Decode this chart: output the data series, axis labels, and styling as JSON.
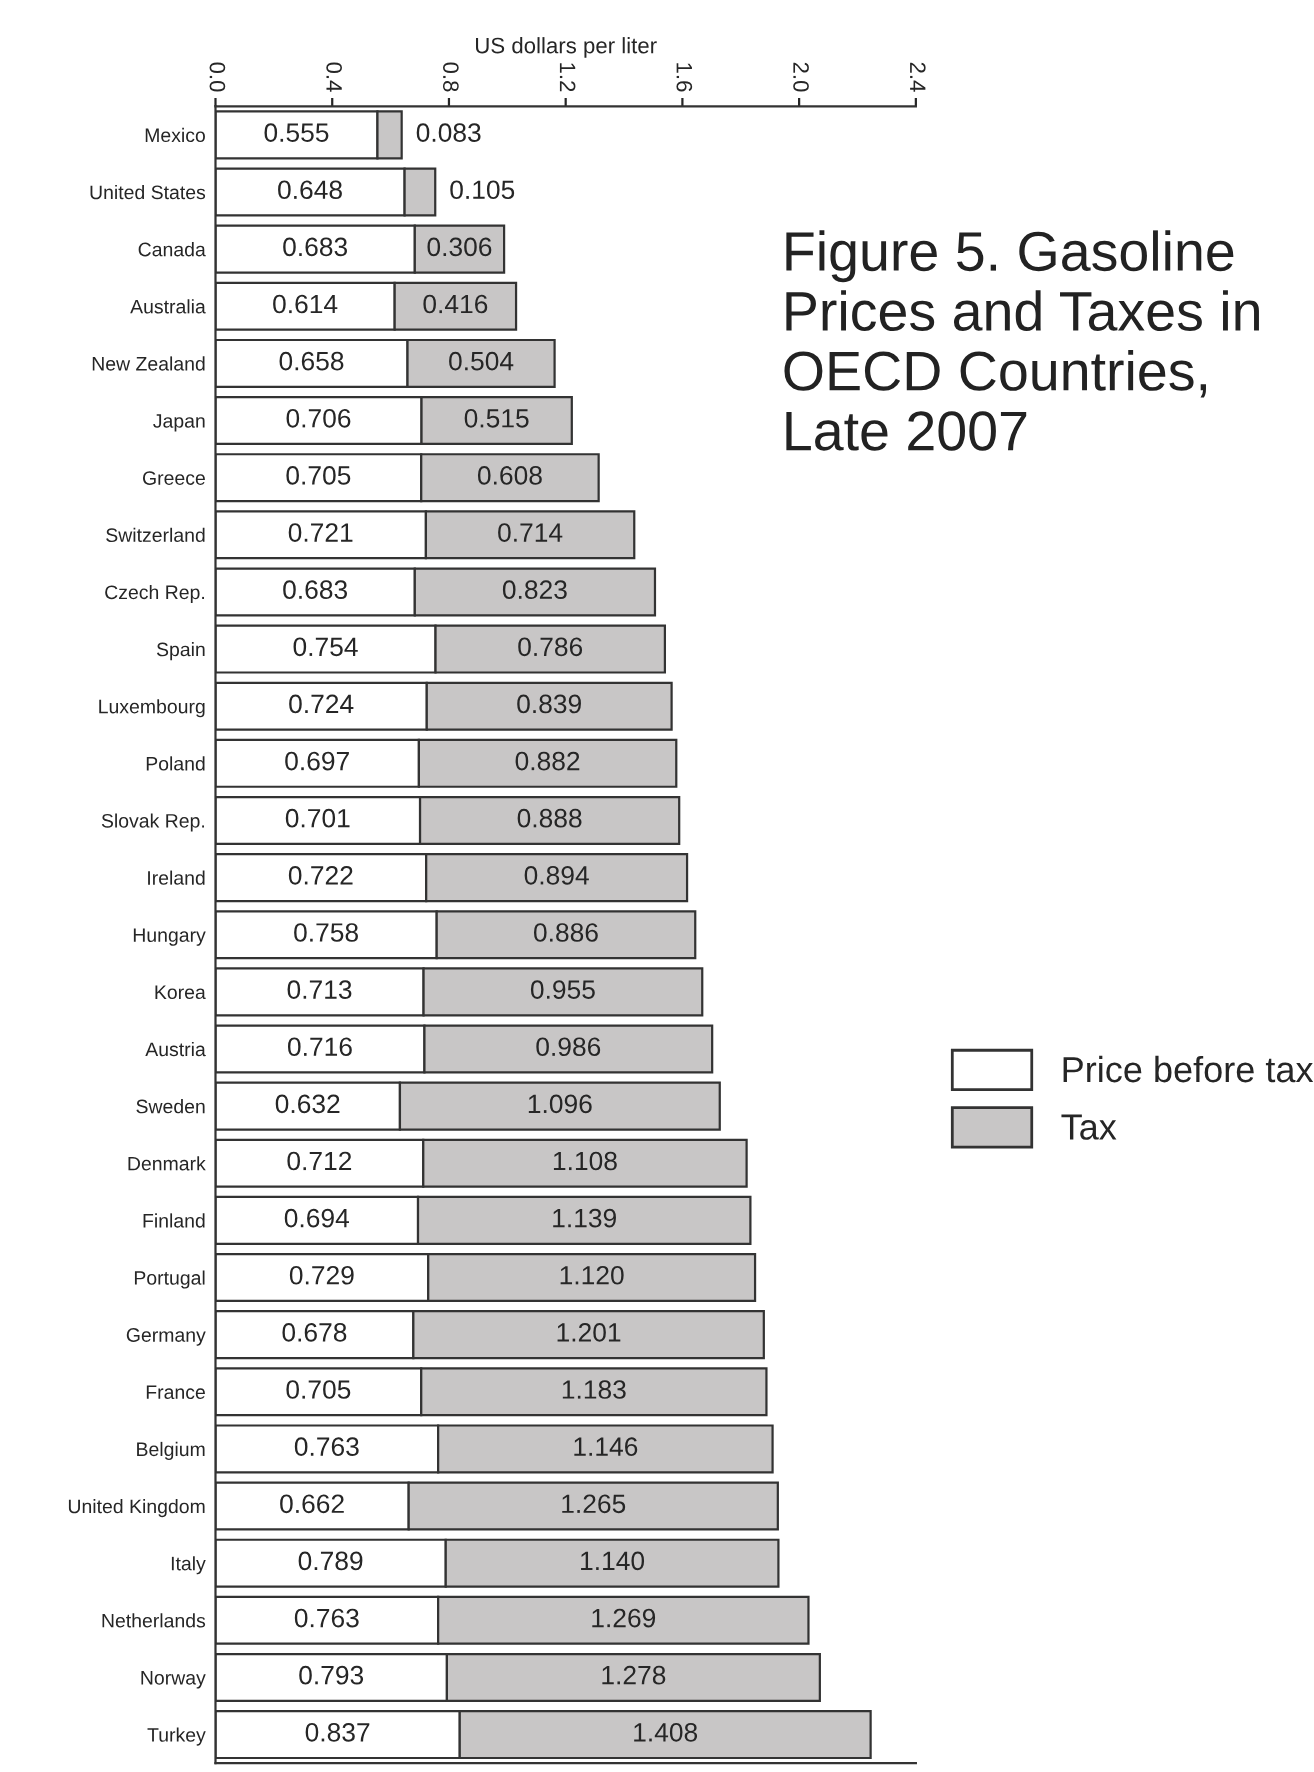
{
  "chart_data": {
    "type": "bar",
    "orientation": "horizontal",
    "stacked": true,
    "title": "Figure 5. Gasoline Prices and Taxes in OECD Countries, Late 2007",
    "xlabel": "US dollars per liter",
    "categories": [
      "Mexico",
      "United States",
      "Canada",
      "Australia",
      "New Zealand",
      "Japan",
      "Greece",
      "Switzerland",
      "Czech Rep.",
      "Spain",
      "Luxembourg",
      "Poland",
      "Slovak Rep.",
      "Ireland",
      "Hungary",
      "Korea",
      "Austria",
      "Sweden",
      "Denmark",
      "Finland",
      "Portugal",
      "Germany",
      "France",
      "Belgium",
      "United Kingdom",
      "Italy",
      "Netherlands",
      "Norway",
      "Turkey"
    ],
    "series": [
      {
        "name": "Price before tax",
        "color": "#ffffff",
        "values": [
          0.555,
          0.648,
          0.683,
          0.614,
          0.658,
          0.706,
          0.705,
          0.721,
          0.683,
          0.754,
          0.724,
          0.697,
          0.701,
          0.722,
          0.758,
          0.713,
          0.716,
          0.632,
          0.712,
          0.694,
          0.729,
          0.678,
          0.705,
          0.763,
          0.662,
          0.789,
          0.763,
          0.793,
          0.837
        ],
        "value_labels": [
          "0.555",
          "0.648",
          "0.683",
          "0.614",
          "0.658",
          "0.706",
          "0.705",
          "0.721",
          "0.683",
          "0.754",
          "0.724",
          "0.697",
          "0.701",
          "0.722",
          "0.758",
          "0.713",
          "0.716",
          "0.632",
          "0.712",
          "0.694",
          "0.729",
          "0.678",
          "0.705",
          "0.763",
          "0.662",
          "0.789",
          "0.763",
          "0.793",
          "0.837"
        ]
      },
      {
        "name": "Tax",
        "color": "#c8c6c6",
        "values": [
          0.083,
          0.105,
          0.306,
          0.416,
          0.504,
          0.515,
          0.608,
          0.714,
          0.823,
          0.786,
          0.839,
          0.882,
          0.888,
          0.894,
          0.886,
          0.955,
          0.986,
          1.096,
          1.108,
          1.139,
          1.12,
          1.201,
          1.183,
          1.146,
          1.265,
          1.14,
          1.269,
          1.278,
          1.408
        ],
        "value_labels": [
          "0.083",
          "0.105",
          "0.306",
          "0.416",
          "0.504",
          "0.515",
          "0.608",
          "0.714",
          "0.823",
          "0.786",
          "0.839",
          "0.882",
          "0.888",
          "0.894",
          "0.886",
          "0.955",
          "0.986",
          "1.096",
          "1.108",
          "1.139",
          "1.120",
          "1.201",
          "1.183",
          "1.146",
          "1.265",
          "1.140",
          "1.269",
          "1.278",
          "1.408"
        ]
      }
    ],
    "xlim": [
      0,
      2.4
    ],
    "xticks": [
      {
        "value": 0,
        "label": "0.0"
      },
      0.4,
      0.8,
      1.2,
      1.6,
      {
        "value": 2,
        "label": "2.0"
      },
      2.4
    ],
    "legend": "right",
    "grid": false
  }
}
